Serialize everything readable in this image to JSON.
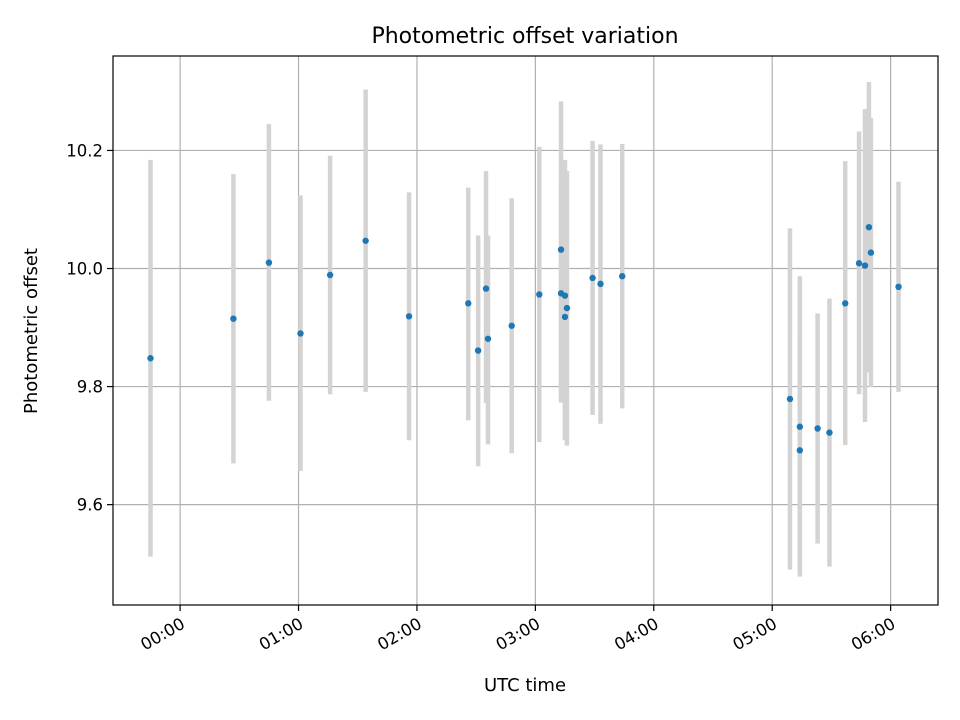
{
  "chart_data": {
    "type": "scatter",
    "title": "Photometric offset variation",
    "xlabel": "UTC time",
    "ylabel": "Photometric offset",
    "x_unit": "HH:MM",
    "xlim": [
      "-00:34",
      "06:24"
    ],
    "ylim": [
      9.43,
      10.36
    ],
    "x_ticks": [
      "00:00",
      "01:00",
      "02:00",
      "03:00",
      "04:00",
      "05:00",
      "06:00"
    ],
    "y_ticks": [
      9.6,
      9.8,
      10.0,
      10.2
    ],
    "y_tick_labels": [
      "9.6",
      "9.8",
      "10.0",
      "10.2"
    ],
    "grid": true,
    "point_color": "#1f77b4",
    "errorbar_color": "#d3d3d3",
    "series": [
      {
        "points": [
          {
            "x": "-00:15",
            "y": 9.848,
            "ylo": 9.512,
            "yhi": 10.184
          },
          {
            "x": "00:27",
            "y": 9.915,
            "ylo": 9.67,
            "yhi": 10.16
          },
          {
            "x": "00:45",
            "y": 10.01,
            "ylo": 9.776,
            "yhi": 10.245
          },
          {
            "x": "01:01",
            "y": 9.89,
            "ylo": 9.657,
            "yhi": 10.124
          },
          {
            "x": "01:16",
            "y": 9.989,
            "ylo": 9.787,
            "yhi": 10.191
          },
          {
            "x": "01:34",
            "y": 10.047,
            "ylo": 9.791,
            "yhi": 10.303
          },
          {
            "x": "01:56",
            "y": 9.919,
            "ylo": 9.709,
            "yhi": 10.129
          },
          {
            "x": "02:26",
            "y": 9.941,
            "ylo": 9.743,
            "yhi": 10.137
          },
          {
            "x": "02:31",
            "y": 9.861,
            "ylo": 9.665,
            "yhi": 10.056
          },
          {
            "x": "02:35",
            "y": 9.966,
            "ylo": 9.772,
            "yhi": 10.165
          },
          {
            "x": "02:36",
            "y": 9.881,
            "ylo": 9.702,
            "yhi": 10.056
          },
          {
            "x": "02:48",
            "y": 9.903,
            "ylo": 9.687,
            "yhi": 10.119
          },
          {
            "x": "03:02",
            "y": 9.956,
            "ylo": 9.706,
            "yhi": 10.206
          },
          {
            "x": "03:13",
            "y": 9.958,
            "ylo": 9.773,
            "yhi": 10.144
          },
          {
            "x": "03:13",
            "y": 10.032,
            "ylo": 9.781,
            "yhi": 10.283
          },
          {
            "x": "03:15",
            "y": 9.954,
            "ylo": 9.711,
            "yhi": 10.184
          },
          {
            "x": "03:15",
            "y": 9.918,
            "ylo": 9.709,
            "yhi": 10.127
          },
          {
            "x": "03:16",
            "y": 9.933,
            "ylo": 9.7,
            "yhi": 10.165
          },
          {
            "x": "03:29",
            "y": 9.984,
            "ylo": 9.752,
            "yhi": 10.216
          },
          {
            "x": "03:33",
            "y": 9.974,
            "ylo": 9.737,
            "yhi": 10.21
          },
          {
            "x": "03:44",
            "y": 9.987,
            "ylo": 9.763,
            "yhi": 10.211
          },
          {
            "x": "05:09",
            "y": 9.779,
            "ylo": 9.49,
            "yhi": 10.068
          },
          {
            "x": "05:14",
            "y": 9.732,
            "ylo": 9.478,
            "yhi": 9.987
          },
          {
            "x": "05:14",
            "y": 9.692,
            "ylo": 9.486,
            "yhi": 9.898
          },
          {
            "x": "05:23",
            "y": 9.729,
            "ylo": 9.534,
            "yhi": 9.924
          },
          {
            "x": "05:29",
            "y": 9.722,
            "ylo": 9.495,
            "yhi": 9.949
          },
          {
            "x": "05:37",
            "y": 9.941,
            "ylo": 9.701,
            "yhi": 10.182
          },
          {
            "x": "05:44",
            "y": 10.009,
            "ylo": 9.787,
            "yhi": 10.232
          },
          {
            "x": "05:47",
            "y": 10.005,
            "ylo": 9.74,
            "yhi": 10.27
          },
          {
            "x": "05:49",
            "y": 10.07,
            "ylo": 9.824,
            "yhi": 10.316
          },
          {
            "x": "05:50",
            "y": 10.027,
            "ylo": 9.799,
            "yhi": 10.255
          },
          {
            "x": "06:04",
            "y": 9.969,
            "ylo": 9.791,
            "yhi": 10.147
          }
        ]
      }
    ]
  }
}
